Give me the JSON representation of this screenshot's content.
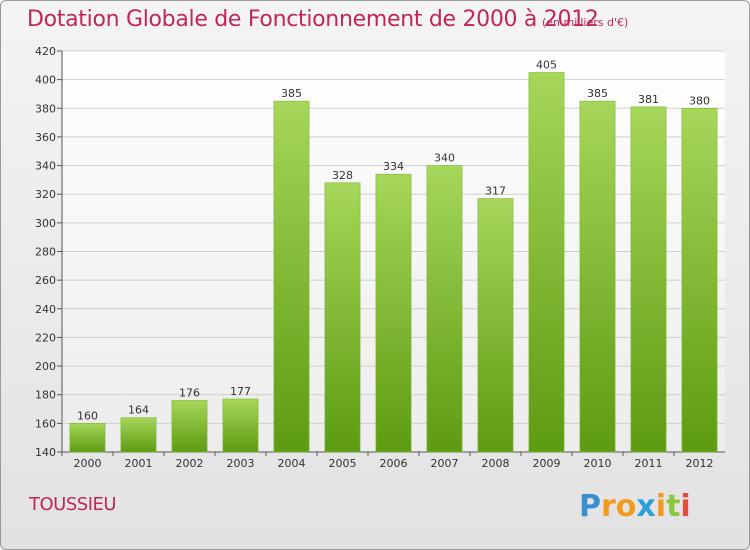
{
  "title": "Dotation Globale de Fonctionnement de 2000 à 2012",
  "subtitle": "(en milliers d'€)",
  "commune": "TOUSSIEU",
  "logo_text": "Proxiti",
  "colors": {
    "title": "#c0265b",
    "bar_top": "#a6d65a",
    "bar_bottom": "#5d9b12"
  },
  "chart_data": {
    "type": "bar",
    "title": "Dotation Globale de Fonctionnement de 2000 à 2012",
    "subtitle": "(en milliers d'€)",
    "categories": [
      "2000",
      "2001",
      "2002",
      "2003",
      "2004",
      "2005",
      "2006",
      "2007",
      "2008",
      "2009",
      "2010",
      "2011",
      "2012"
    ],
    "values": [
      160,
      164,
      176,
      177,
      385,
      328,
      334,
      340,
      317,
      405,
      385,
      381,
      380
    ],
    "ylim": [
      140,
      420
    ],
    "yticks": [
      140,
      160,
      180,
      200,
      220,
      240,
      260,
      280,
      300,
      320,
      340,
      360,
      380,
      400,
      420
    ],
    "grid": true,
    "xlabel": "",
    "ylabel": ""
  }
}
